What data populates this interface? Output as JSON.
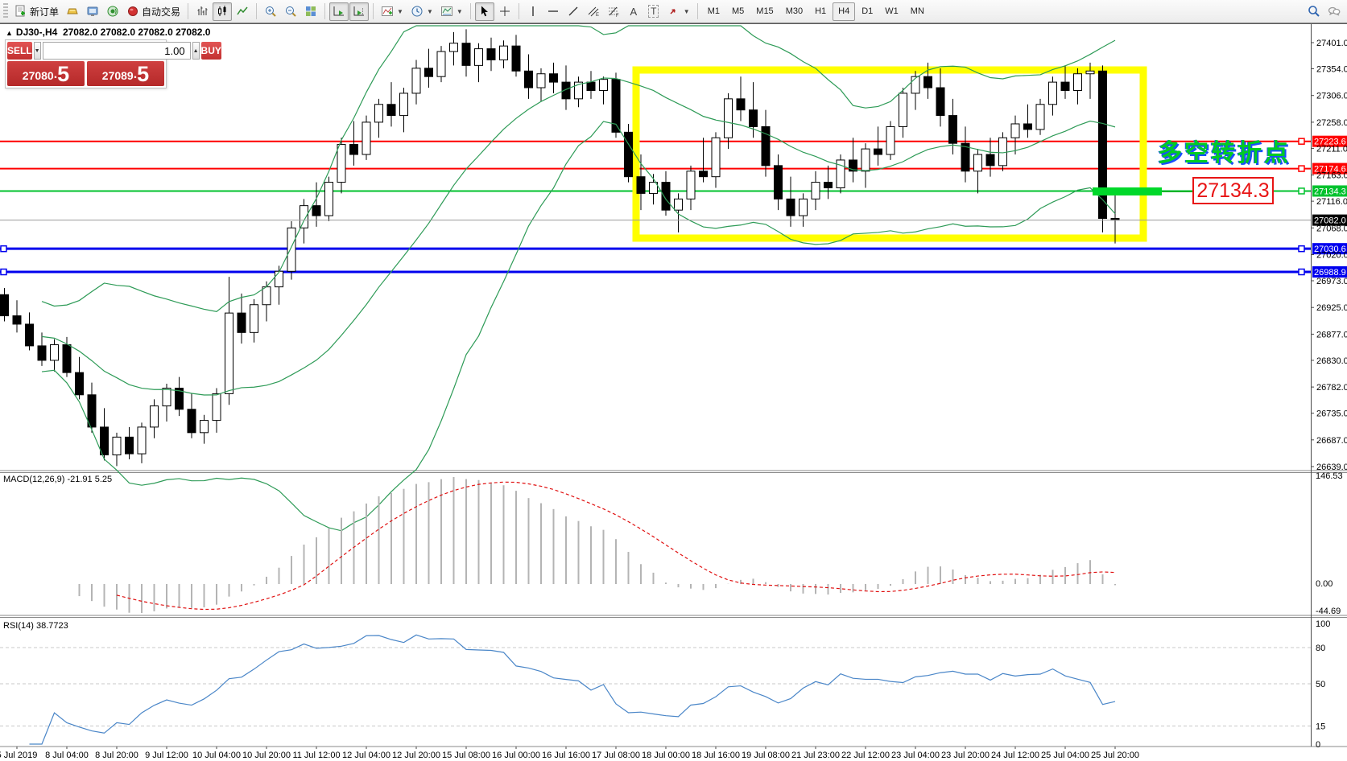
{
  "toolbar": {
    "new_order_label": "新订单",
    "auto_trading_label": "自动交易",
    "text_tool_label": "A",
    "text_label_tool_label": "T",
    "timeframes": [
      {
        "label": "M1",
        "active": false
      },
      {
        "label": "M5",
        "active": false
      },
      {
        "label": "M15",
        "active": false
      },
      {
        "label": "M30",
        "active": false
      },
      {
        "label": "H1",
        "active": false
      },
      {
        "label": "H4",
        "active": true
      },
      {
        "label": "D1",
        "active": false
      },
      {
        "label": "W1",
        "active": false
      },
      {
        "label": "MN",
        "active": false
      }
    ]
  },
  "symbol_bar": {
    "collapse_arrow": "▲",
    "symbol": "DJ30-,H4",
    "quotes": "27082.0 27082.0 27082.0 27082.0"
  },
  "trade_panel": {
    "sell_label": "SELL",
    "buy_label": "BUY",
    "volume": "1.00",
    "spin_down": "▼",
    "spin_up": "▲",
    "sell_price": {
      "big": "27080",
      "dot": ".",
      "pip": "5"
    },
    "buy_price": {
      "big": "27089",
      "dot": ".",
      "pip": "5"
    }
  },
  "chart_data": {
    "type": "candlestick",
    "symbol": "DJ30-",
    "timeframe": "H4",
    "price_axis_ticks": [
      "27401.0",
      "27354.0",
      "27306.0",
      "27258.0",
      "27211.0",
      "27163.0",
      "27116.0",
      "27068.0",
      "27020.0",
      "26973.0",
      "26925.0",
      "26877.0",
      "26830.0",
      "26782.0",
      "26735.0",
      "26687.0",
      "26639.0"
    ],
    "time_labels": [
      "5 Jul 2019",
      "8 Jul 04:00",
      "8 Jul 20:00",
      "9 Jul 12:00",
      "10 Jul 04:00",
      "10 Jul 20:00",
      "11 Jul 12:00",
      "12 Jul 04:00",
      "12 Jul 20:00",
      "15 Jul 08:00",
      "16 Jul 00:00",
      "16 Jul 16:00",
      "17 Jul 08:00",
      "18 Jul 00:00",
      "18 Jul 16:00",
      "19 Jul 08:00",
      "21 Jul 23:00",
      "22 Jul 12:00",
      "23 Jul 04:00",
      "23 Jul 20:00",
      "24 Jul 12:00",
      "25 Jul 04:00",
      "25 Jul 20:00"
    ],
    "candles": [
      [
        26948,
        26960,
        26900,
        26910
      ],
      [
        26910,
        26938,
        26880,
        26895
      ],
      [
        26895,
        26916,
        26848,
        26856
      ],
      [
        26856,
        26880,
        26820,
        26830
      ],
      [
        26830,
        26868,
        26810,
        26858
      ],
      [
        26858,
        26872,
        26800,
        26808
      ],
      [
        26808,
        26836,
        26760,
        26768
      ],
      [
        26768,
        26790,
        26700,
        26710
      ],
      [
        26710,
        26744,
        26650,
        26660
      ],
      [
        26660,
        26700,
        26640,
        26692
      ],
      [
        26692,
        26710,
        26652,
        26662
      ],
      [
        26662,
        26718,
        26645,
        26710
      ],
      [
        26710,
        26760,
        26690,
        26748
      ],
      [
        26748,
        26788,
        26720,
        26780
      ],
      [
        26780,
        26800,
        26730,
        26742
      ],
      [
        26742,
        26770,
        26690,
        26700
      ],
      [
        26700,
        26732,
        26680,
        26722
      ],
      [
        26722,
        26780,
        26700,
        26770
      ],
      [
        26770,
        26980,
        26750,
        26915
      ],
      [
        26915,
        26950,
        26860,
        26880
      ],
      [
        26880,
        26940,
        26862,
        26930
      ],
      [
        26930,
        26972,
        26900,
        26962
      ],
      [
        26962,
        27000,
        26930,
        26990
      ],
      [
        26990,
        27080,
        26975,
        27068
      ],
      [
        27068,
        27120,
        27040,
        27108
      ],
      [
        27108,
        27150,
        27070,
        27090
      ],
      [
        27090,
        27160,
        27080,
        27150
      ],
      [
        27150,
        27230,
        27130,
        27218
      ],
      [
        27218,
        27260,
        27180,
        27200
      ],
      [
        27200,
        27270,
        27190,
        27258
      ],
      [
        27258,
        27300,
        27230,
        27290
      ],
      [
        27290,
        27330,
        27250,
        27270
      ],
      [
        27270,
        27320,
        27240,
        27310
      ],
      [
        27310,
        27370,
        27290,
        27355
      ],
      [
        27355,
        27390,
        27320,
        27340
      ],
      [
        27340,
        27395,
        27330,
        27385
      ],
      [
        27385,
        27420,
        27360,
        27400
      ],
      [
        27400,
        27425,
        27340,
        27360
      ],
      [
        27360,
        27400,
        27330,
        27390
      ],
      [
        27390,
        27410,
        27350,
        27370
      ],
      [
        27370,
        27405,
        27355,
        27395
      ],
      [
        27395,
        27415,
        27340,
        27350
      ],
      [
        27350,
        27380,
        27300,
        27320
      ],
      [
        27320,
        27355,
        27295,
        27345
      ],
      [
        27345,
        27365,
        27310,
        27330
      ],
      [
        27330,
        27360,
        27280,
        27300
      ],
      [
        27300,
        27340,
        27285,
        27330
      ],
      [
        27330,
        27350,
        27300,
        27315
      ],
      [
        27315,
        27340,
        27290,
        27335
      ],
      [
        27335,
        27347,
        27230,
        27240
      ],
      [
        27240,
        27255,
        27150,
        27160
      ],
      [
        27160,
        27200,
        27100,
        27130
      ],
      [
        27130,
        27165,
        27110,
        27150
      ],
      [
        27150,
        27170,
        27090,
        27100
      ],
      [
        27100,
        27130,
        27060,
        27120
      ],
      [
        27120,
        27180,
        27100,
        27170
      ],
      [
        27170,
        27230,
        27150,
        27160
      ],
      [
        27160,
        27240,
        27140,
        27230
      ],
      [
        27230,
        27310,
        27210,
        27300
      ],
      [
        27300,
        27340,
        27260,
        27280
      ],
      [
        27280,
        27330,
        27230,
        27250
      ],
      [
        27250,
        27280,
        27160,
        27180
      ],
      [
        27180,
        27200,
        27100,
        27120
      ],
      [
        27120,
        27160,
        27070,
        27090
      ],
      [
        27090,
        27130,
        27070,
        27120
      ],
      [
        27120,
        27170,
        27100,
        27150
      ],
      [
        27150,
        27180,
        27120,
        27140
      ],
      [
        27140,
        27200,
        27130,
        27190
      ],
      [
        27190,
        27230,
        27150,
        27170
      ],
      [
        27170,
        27220,
        27140,
        27210
      ],
      [
        27210,
        27250,
        27180,
        27200
      ],
      [
        27200,
        27260,
        27190,
        27250
      ],
      [
        27250,
        27320,
        27230,
        27310
      ],
      [
        27310,
        27350,
        27280,
        27340
      ],
      [
        27340,
        27365,
        27300,
        27320
      ],
      [
        27320,
        27355,
        27250,
        27270
      ],
      [
        27270,
        27300,
        27200,
        27220
      ],
      [
        27220,
        27250,
        27150,
        27170
      ],
      [
        27170,
        27210,
        27130,
        27200
      ],
      [
        27200,
        27230,
        27160,
        27180
      ],
      [
        27180,
        27240,
        27170,
        27230
      ],
      [
        27230,
        27270,
        27200,
        27255
      ],
      [
        27255,
        27290,
        27230,
        27245
      ],
      [
        27245,
        27300,
        27235,
        27290
      ],
      [
        27290,
        27340,
        27270,
        27330
      ],
      [
        27330,
        27360,
        27300,
        27315
      ],
      [
        27315,
        27355,
        27290,
        27345
      ],
      [
        27345,
        27365,
        27300,
        27350
      ],
      [
        27350,
        27360,
        27060,
        27085
      ],
      [
        27085,
        27135,
        27040,
        27082
      ]
    ],
    "current_price": 27082.0,
    "current_price_label": "27082.0",
    "hlines": [
      {
        "price": 27223.6,
        "label": "27223.6",
        "color": "#ff0000",
        "width": 2
      },
      {
        "price": 27174.6,
        "label": "27174.6",
        "color": "#ff0000",
        "width": 2
      },
      {
        "price": 27134.3,
        "label": "27134.3",
        "color": "#00c22e",
        "width": 2
      },
      {
        "price": 27030.6,
        "label": "27030.6",
        "color": "#0000ee",
        "width": 3
      },
      {
        "price": 26988.9,
        "label": "26988.9",
        "color": "#0000ee",
        "width": 3
      }
    ],
    "indicators": {
      "bollinger": {
        "period": 20,
        "deviation": 2,
        "color": "#2e9b57"
      },
      "macd": {
        "label": "MACD(12,26,9) -21.91 5.25",
        "fast": 12,
        "slow": 26,
        "signal": 9,
        "value": -21.91,
        "signal_value": 5.25,
        "axis_labels": {
          "top": "146.53",
          "zero": "0.00",
          "bottom": "-44.69"
        },
        "histogram_color": "#b4b4b4",
        "signal_color": "#e01010"
      },
      "rsi": {
        "label": "RSI(14) 38.7723",
        "period": 14,
        "value": 38.7723,
        "axis_labels": [
          "100",
          "80",
          "50",
          "15",
          "0"
        ],
        "levels": [
          80,
          50,
          15
        ],
        "line_color": "#4a86c8"
      }
    },
    "annotations": {
      "yellow_box": {
        "x1_price_time": "17 Jul",
        "color": "#ffff00"
      },
      "highlight_bar": {
        "price": 27134.3,
        "color": "#00d82a"
      },
      "price_callout": {
        "text": "27134.3",
        "color": "#e81414"
      },
      "note_text": {
        "text": "多空转折点",
        "color": "#00cc22"
      }
    }
  }
}
